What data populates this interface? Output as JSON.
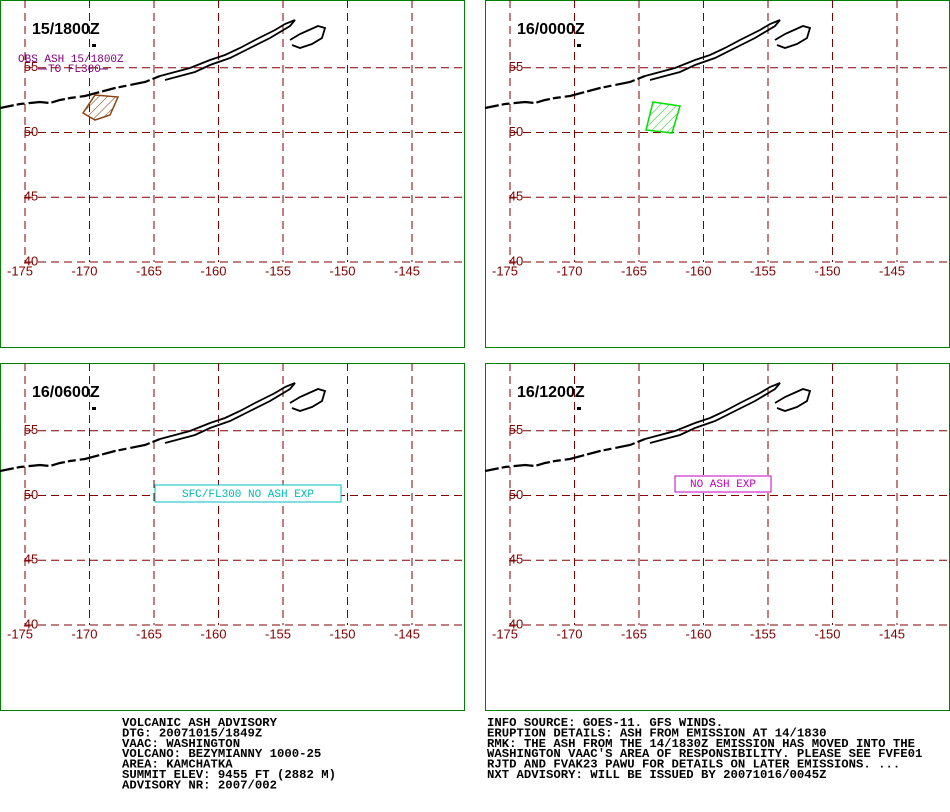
{
  "panels": [
    {
      "title": "15/1800Z",
      "annotation": [
        "OBS ASH 15/1800Z",
        "TO FL300"
      ]
    },
    {
      "title": "16/0000Z"
    },
    {
      "title": "16/0600Z",
      "annotation": [
        "SFC/FL300 NO ASH EXP"
      ]
    },
    {
      "title": "16/1200Z",
      "annotation": [
        "NO ASH EXP"
      ]
    }
  ],
  "grid": {
    "lat": [
      55,
      50,
      45,
      40
    ],
    "lon": [
      -175,
      -170,
      -165,
      -160,
      -155,
      -150,
      -145
    ]
  },
  "info_left": [
    "VOLCANIC ASH ADVISORY",
    "DTG: 20071015/1849Z",
    "VAAC: WASHINGTON",
    "VOLCANO: BEZYMIANNY 1000-25",
    "AREA: KAMCHATKA",
    "SUMMIT ELEV: 9455 FT (2882 M)",
    "ADVISORY NR: 2007/002"
  ],
  "info_right": [
    "INFO SOURCE: GOES-11. GFS WINDS.",
    "ERUPTION DETAILS: ASH FROM EMISSION AT 14/1830",
    "RMK: THE ASH FROM THE 14/1830Z EMISSION HAS MOVED INTO THE",
    "WASHINGTON VAAC'S AREA OF RESPONSIBILITY. PLEASE SEE FVFE01",
    "RJTD AND FVAK23 PAWU FOR DETAILS ON LATER EMISSIONS. ...",
    "NXT ADVISORY: WILL BE ISSUED BY 20071016/0045Z"
  ]
}
